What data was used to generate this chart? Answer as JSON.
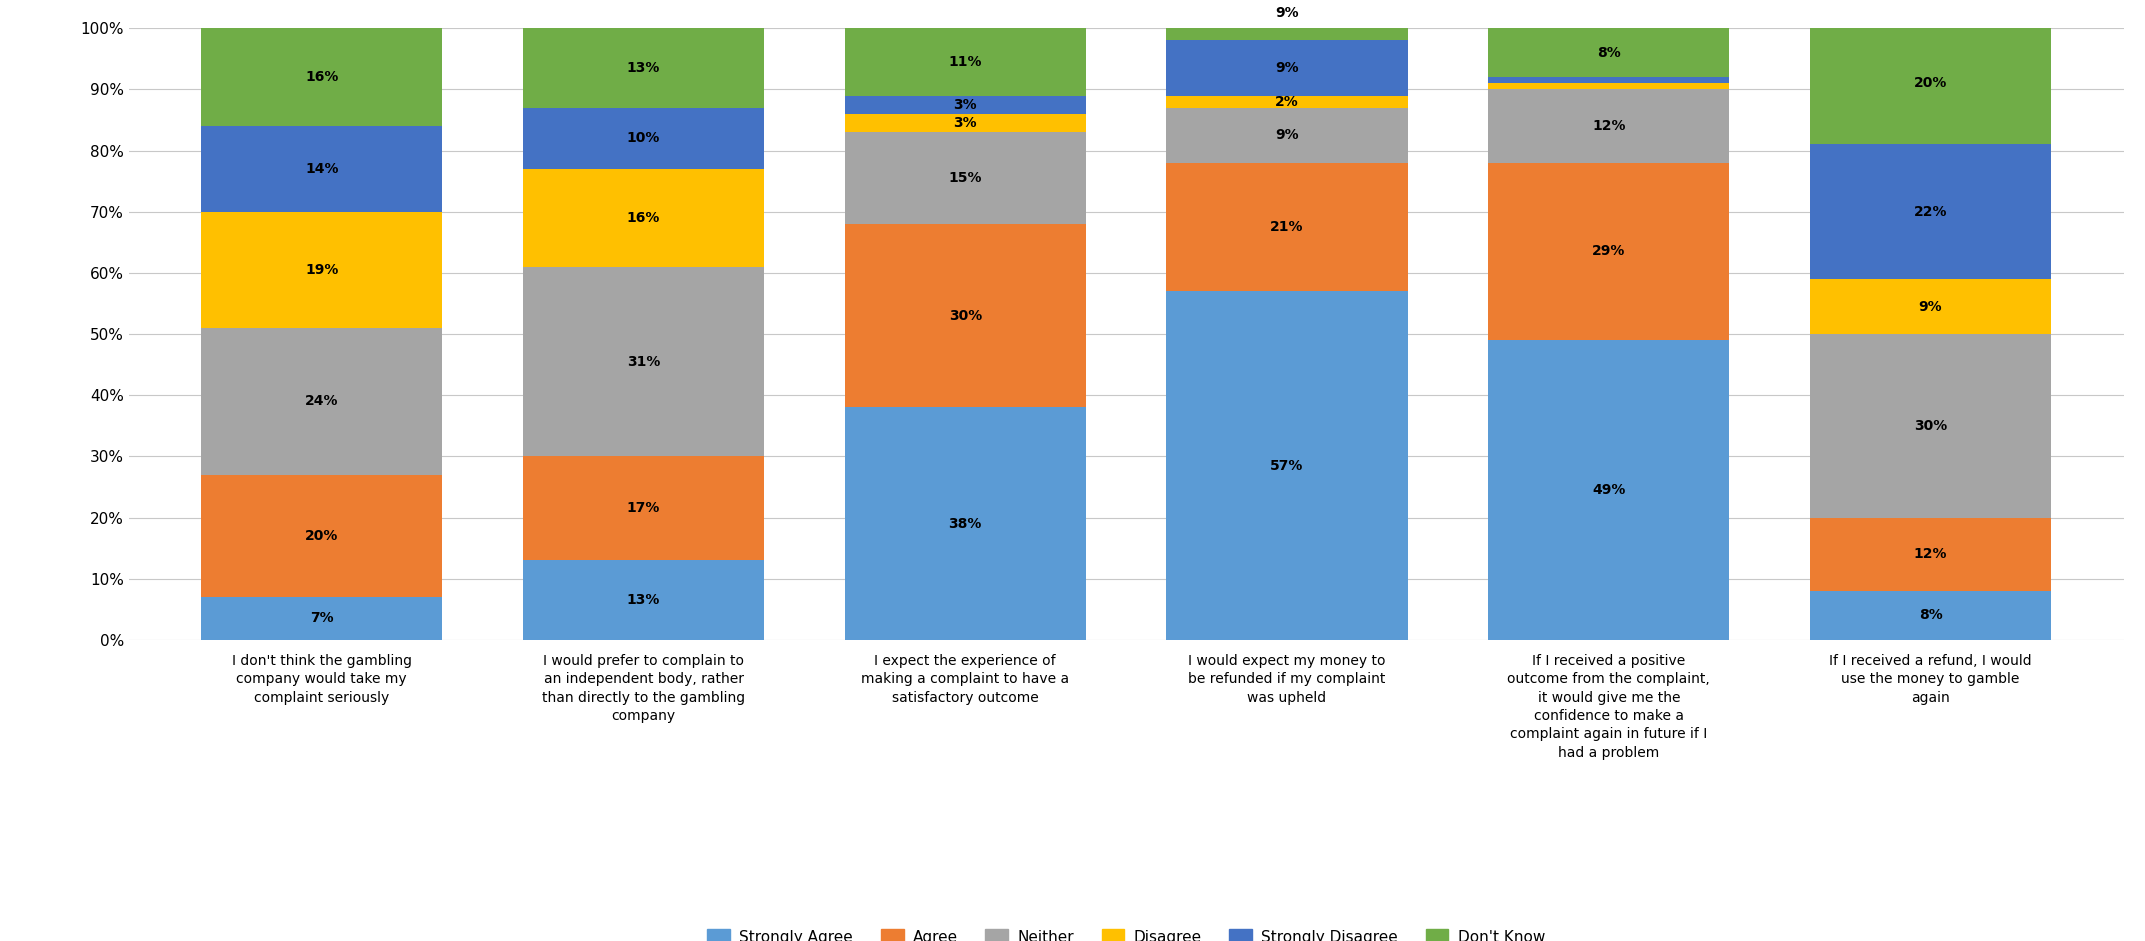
{
  "categories": [
    "I don't think the gambling\ncompany would take my\ncomplaint seriously",
    "I would prefer to complain to\nan independent body, rather\nthan directly to the gambling\ncompany",
    "I expect the experience of\nmaking a complaint to have a\nsatisfactory outcome",
    "I would expect my money to\nbe refunded if my complaint\nwas upheld",
    "If I received a positive\noutcome from the complaint,\nit would give me the\nconfidence to make a\ncomplaint again in future if I\nhad a problem",
    "If I received a refund, I would\nuse the money to gamble\nagain"
  ],
  "series_order": [
    "Strongly Agree",
    "Agree",
    "Neither",
    "Disagree",
    "Strongly Disagree",
    "Don't Know"
  ],
  "series": {
    "Strongly Agree": [
      7,
      13,
      38,
      57,
      49,
      8
    ],
    "Agree": [
      20,
      17,
      30,
      21,
      29,
      12
    ],
    "Neither": [
      24,
      31,
      15,
      9,
      12,
      30
    ],
    "Disagree": [
      19,
      16,
      3,
      2,
      1,
      9
    ],
    "Strongly Disagree": [
      14,
      10,
      3,
      9,
      1,
      22
    ],
    "Don't Know": [
      16,
      13,
      11,
      9,
      8,
      20
    ]
  },
  "colors": {
    "Strongly Agree": "#5B9BD5",
    "Agree": "#ED7D31",
    "Neither": "#A5A5A5",
    "Disagree": "#FFC000",
    "Strongly Disagree": "#4472C4",
    "Don't Know": "#70AD47"
  },
  "bar_width": 0.75,
  "ylim": [
    0,
    100
  ],
  "yticks": [
    0,
    10,
    20,
    30,
    40,
    50,
    60,
    70,
    80,
    90,
    100
  ],
  "ytick_labels": [
    "0%",
    "10%",
    "20%",
    "30%",
    "40%",
    "50%",
    "60%",
    "70%",
    "80%",
    "90%",
    "100%"
  ],
  "background_color": "#FFFFFF",
  "grid_color": "#C8C8C8",
  "min_label_pct": 2,
  "label_fontsize": 10,
  "tick_fontsize": 11,
  "legend_fontsize": 11
}
